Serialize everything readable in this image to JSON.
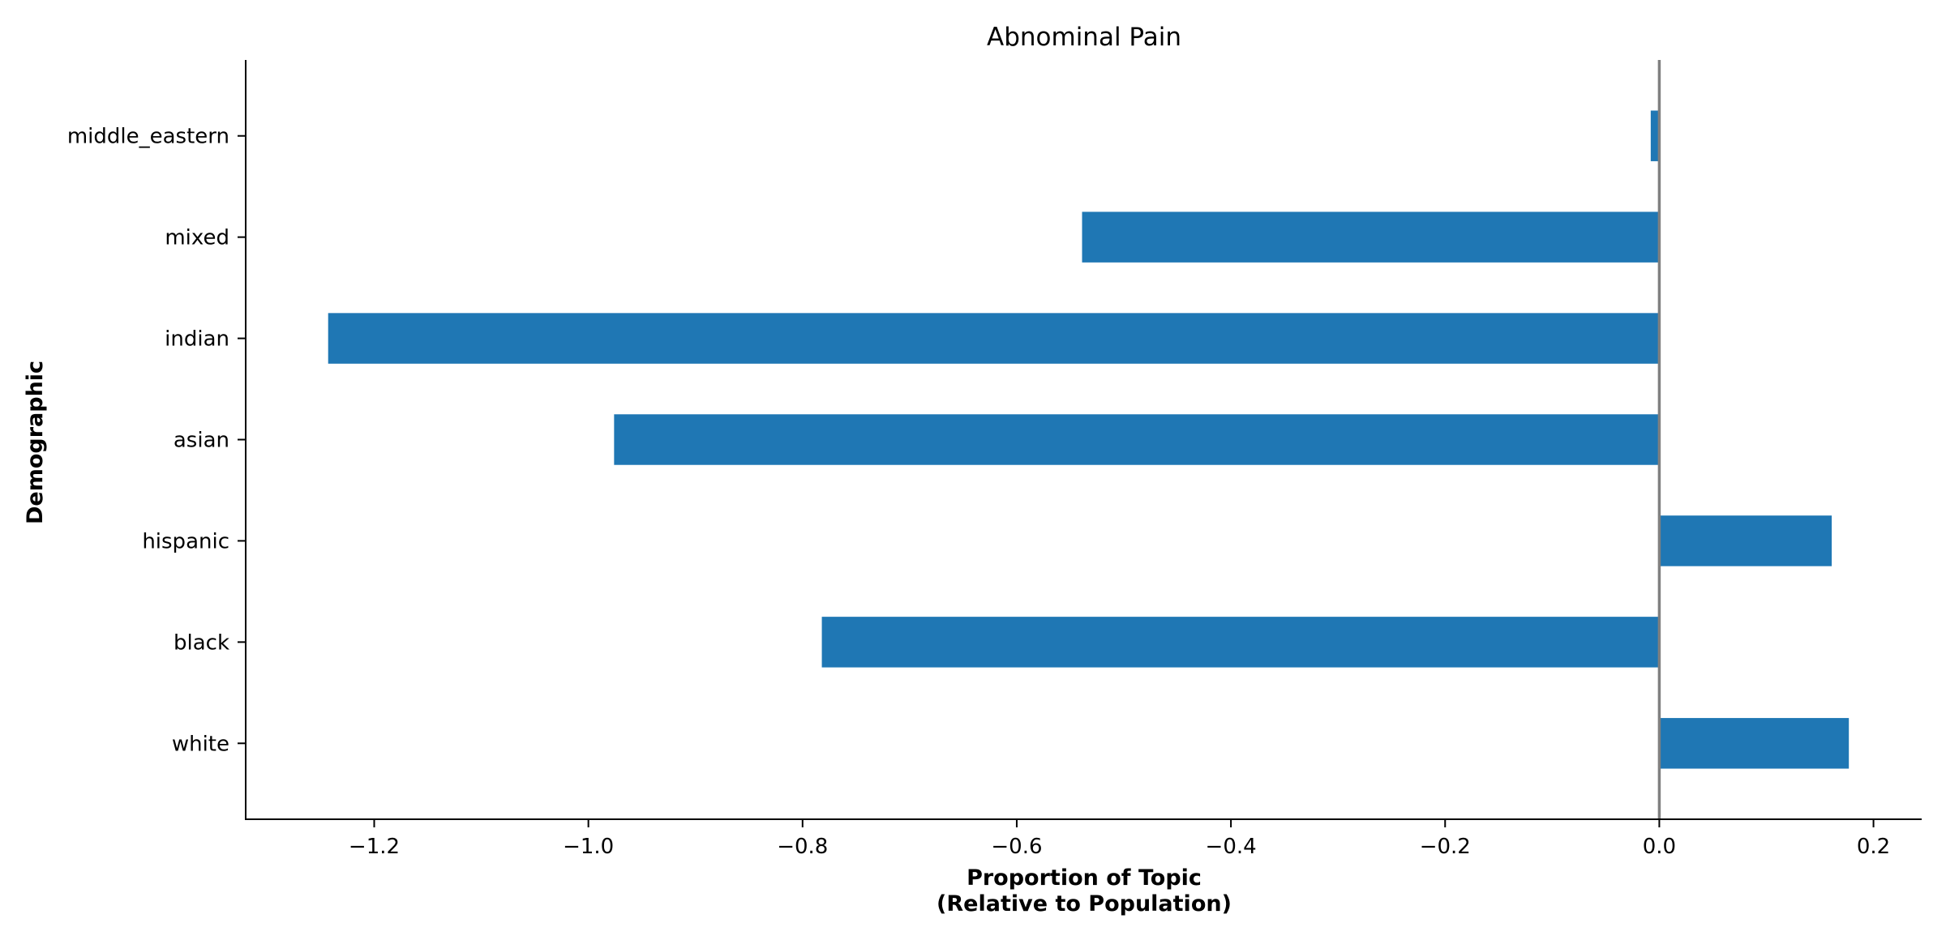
{
  "chart_data": {
    "type": "bar",
    "orientation": "horizontal",
    "title": "Abnominal Pain",
    "xlabel_line1": "Proportion of Topic",
    "xlabel_line2": "(Relative to Population)",
    "ylabel": "Demographic",
    "categories": [
      "white",
      "black",
      "hispanic",
      "asian",
      "indian",
      "mixed",
      "middle_eastern"
    ],
    "values": [
      0.177,
      -0.782,
      0.161,
      -0.976,
      -1.243,
      -0.539,
      -0.008
    ],
    "xlim": [
      -1.32,
      0.245
    ],
    "xticks": [
      -1.2,
      -1.0,
      -0.8,
      -0.6,
      -0.4,
      -0.2,
      0.0,
      0.2
    ],
    "xtick_labels": [
      "−1.2",
      "−1.0",
      "−0.8",
      "−0.6",
      "−0.4",
      "−0.2",
      "0.0",
      "0.2"
    ],
    "bar_color": "#1f77b4",
    "zero_line_color": "#808080",
    "grid": false,
    "legend": "none"
  }
}
